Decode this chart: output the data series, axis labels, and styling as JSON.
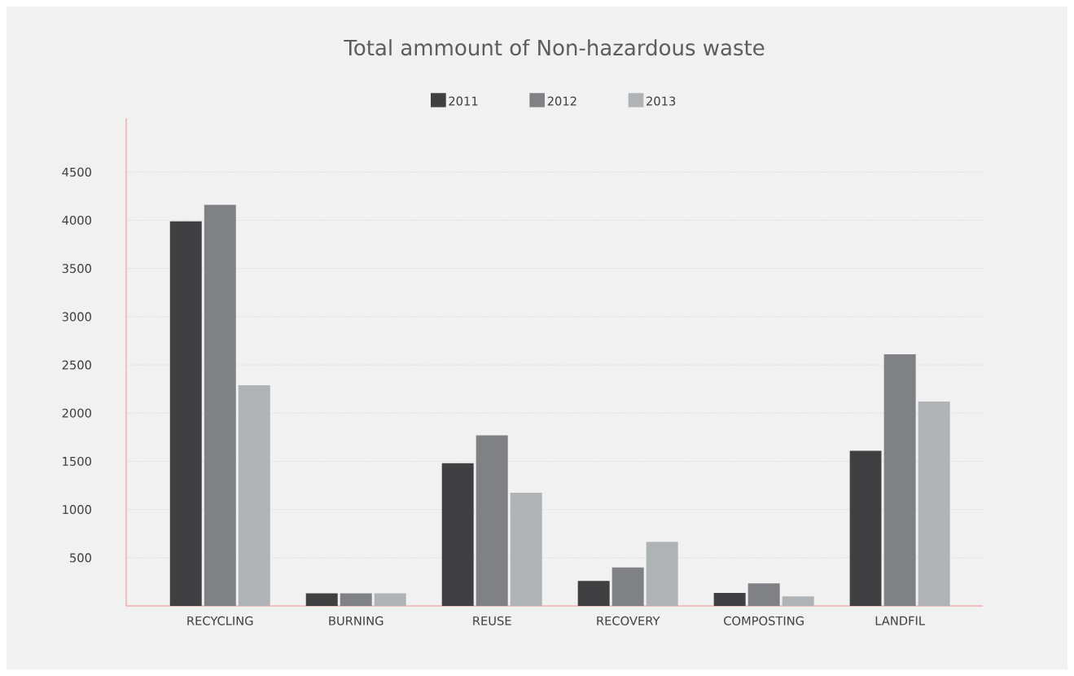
{
  "chart_data": {
    "type": "bar",
    "title": "Total ammount of Non-hazardous waste",
    "categories": [
      "RECYCLING",
      "BURNING",
      "REUSE",
      "RECOVERY",
      "COMPOSTING",
      "LANDFIL"
    ],
    "series": [
      {
        "name": "2011",
        "color": "#404042",
        "values": [
          3990,
          130,
          1480,
          260,
          135,
          1610
        ]
      },
      {
        "name": "2012",
        "color": "#808184",
        "values": [
          4160,
          130,
          1770,
          400,
          235,
          2610
        ]
      },
      {
        "name": "2013",
        "color": "#b0b3b5",
        "values": [
          2290,
          130,
          1175,
          665,
          100,
          2120
        ]
      }
    ],
    "ylim": [
      0,
      5060
    ],
    "yticks": [
      500,
      1000,
      1500,
      2000,
      2500,
      3000,
      3500,
      4000,
      4500
    ],
    "grid": "y",
    "legend": "top"
  }
}
